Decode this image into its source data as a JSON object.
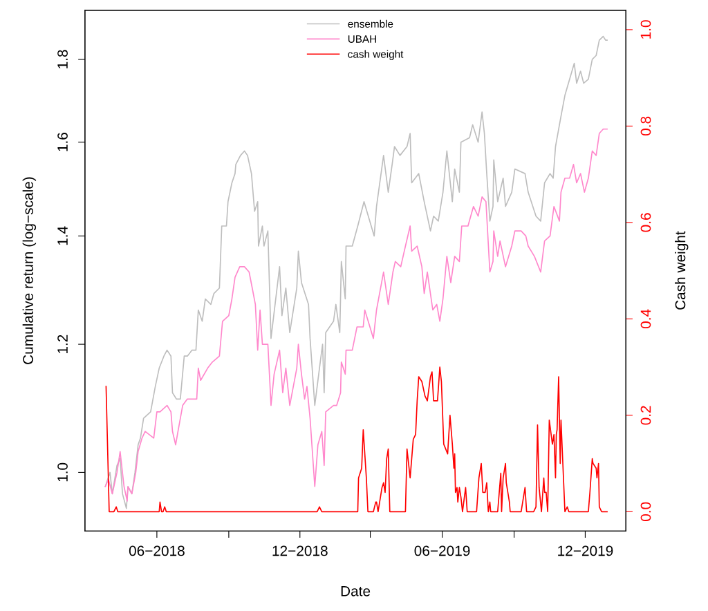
{
  "chart_data": {
    "type": "line",
    "xlabel": "Date",
    "ylabel": "Cumulative return (log−scale)",
    "y2label": "Cash weight",
    "log": "y",
    "grid": false,
    "legend": "top",
    "line_style": "solid",
    "marker": "none",
    "xlim": [
      "2018-03-01",
      "2020-01-22"
    ],
    "xticks": [
      {
        "value": "2018-06-01",
        "label": "06−2018"
      },
      {
        "value": "2018-09-01",
        "label": null
      },
      {
        "value": "2018-12-01",
        "label": "12−2018"
      },
      {
        "value": "2019-03-01",
        "label": null
      },
      {
        "value": "2019-06-01",
        "label": "06−2019"
      },
      {
        "value": "2019-09-01",
        "label": null
      },
      {
        "value": "2019-12-01",
        "label": "12−2019"
      }
    ],
    "ylim": [
      0.92,
      1.93
    ],
    "yticks": [
      {
        "value": 1.0,
        "label": "1.0"
      },
      1.2,
      1.4,
      1.6,
      1.8
    ],
    "y2lim": [
      -0.04,
      1.04
    ],
    "y2ticks": [
      {
        "value": 0,
        "label": "0.0"
      },
      0.2,
      0.4,
      0.6,
      0.8,
      {
        "value": 1,
        "label": "1.0"
      }
    ],
    "series": [
      {
        "name": "ensemble",
        "color": "#bebebe",
        "x": [
          "2018-03-27",
          "2018-04-02",
          "2018-04-05",
          "2018-04-11",
          "2018-04-15",
          "2018-04-18",
          "2018-04-23",
          "2018-04-25",
          "2018-04-30",
          "2018-05-04",
          "2018-05-08",
          "2018-05-11",
          "2018-05-15",
          "2018-05-24",
          "2018-05-30",
          "2018-06-04",
          "2018-06-10",
          "2018-06-14",
          "2018-06-19",
          "2018-06-21",
          "2018-06-26",
          "2018-07-01",
          "2018-07-06",
          "2018-07-10",
          "2018-07-16",
          "2018-07-21",
          "2018-07-24",
          "2018-07-29",
          "2018-08-02",
          "2018-08-09",
          "2018-08-13",
          "2018-08-20",
          "2018-08-23",
          "2018-08-29",
          "2018-08-31",
          "2018-09-05",
          "2018-09-09",
          "2018-09-10",
          "2018-09-16",
          "2018-09-21",
          "2018-09-25",
          "2018-09-30",
          "2018-10-04",
          "2018-10-08",
          "2018-10-09",
          "2018-10-14",
          "2018-10-16",
          "2018-10-21",
          "2018-10-25",
          "2018-11-05",
          "2018-11-08",
          "2018-11-13",
          "2018-11-18",
          "2018-11-27",
          "2018-11-29",
          "2018-12-03",
          "2018-12-12",
          "2018-12-14",
          "2018-12-20",
          "2018-12-27",
          "2018-12-30",
          "2019-01-01",
          "2019-01-03",
          "2019-01-13",
          "2019-01-16",
          "2019-01-21",
          "2019-01-23",
          "2019-01-28",
          "2019-01-29",
          "2019-02-06",
          "2019-02-13",
          "2019-02-21",
          "2019-03-06",
          "2019-03-09",
          "2019-03-18",
          "2019-03-24",
          "2019-03-29",
          "2019-04-01",
          "2019-04-08",
          "2019-04-17",
          "2019-04-21",
          "2019-04-23",
          "2019-05-02",
          "2019-05-09",
          "2019-05-17",
          "2019-05-21",
          "2019-05-27",
          "2019-06-02",
          "2019-06-07",
          "2019-06-14",
          "2019-06-17",
          "2019-06-23",
          "2019-06-25",
          "2019-07-06",
          "2019-07-10",
          "2019-07-17",
          "2019-07-22",
          "2019-07-25",
          "2019-07-28",
          "2019-08-01",
          "2019-08-05",
          "2019-08-06",
          "2019-08-11",
          "2019-08-18",
          "2019-08-21",
          "2019-08-29",
          "2019-09-02",
          "2019-09-15",
          "2019-09-19",
          "2019-09-29",
          "2019-10-05",
          "2019-10-10",
          "2019-10-17",
          "2019-10-21",
          "2019-10-24",
          "2019-10-31",
          "2019-11-05",
          "2019-11-14",
          "2019-11-17",
          "2019-11-20",
          "2019-11-25",
          "2019-11-29",
          "2019-12-05",
          "2019-12-10",
          "2019-12-15",
          "2019-12-19",
          "2019-12-24",
          "2019-12-27",
          "2019-12-29"
        ],
        "values": [
          0.98,
          1.0,
          0.97,
          1.01,
          1.02,
          0.97,
          0.95,
          0.98,
          0.97,
          1.0,
          1.04,
          1.05,
          1.08,
          1.09,
          1.13,
          1.16,
          1.18,
          1.19,
          1.18,
          1.12,
          1.11,
          1.11,
          1.18,
          1.18,
          1.19,
          1.19,
          1.26,
          1.24,
          1.28,
          1.27,
          1.29,
          1.3,
          1.42,
          1.42,
          1.47,
          1.51,
          1.53,
          1.55,
          1.57,
          1.58,
          1.57,
          1.53,
          1.45,
          1.47,
          1.38,
          1.42,
          1.38,
          1.41,
          1.21,
          1.34,
          1.25,
          1.3,
          1.22,
          1.3,
          1.37,
          1.31,
          1.27,
          1.21,
          1.1,
          1.17,
          1.2,
          1.12,
          1.22,
          1.24,
          1.27,
          1.22,
          1.35,
          1.28,
          1.38,
          1.38,
          1.42,
          1.47,
          1.4,
          1.46,
          1.57,
          1.49,
          1.55,
          1.59,
          1.57,
          1.59,
          1.62,
          1.51,
          1.53,
          1.47,
          1.41,
          1.44,
          1.43,
          1.49,
          1.58,
          1.47,
          1.54,
          1.49,
          1.6,
          1.61,
          1.64,
          1.6,
          1.67,
          1.62,
          1.53,
          1.43,
          1.46,
          1.56,
          1.47,
          1.52,
          1.46,
          1.49,
          1.54,
          1.53,
          1.49,
          1.44,
          1.43,
          1.51,
          1.53,
          1.52,
          1.59,
          1.66,
          1.71,
          1.77,
          1.79,
          1.74,
          1.77,
          1.74,
          1.75,
          1.8,
          1.81,
          1.85,
          1.86,
          1.85,
          1.85
        ]
      },
      {
        "name": "UBAH",
        "color": "#ff88cc",
        "x": [
          "2018-03-27",
          "2018-03-31",
          "2018-04-05",
          "2018-04-11",
          "2018-04-15",
          "2018-04-20",
          "2018-04-24",
          "2018-04-25",
          "2018-04-30",
          "2018-05-05",
          "2018-05-08",
          "2018-05-13",
          "2018-05-17",
          "2018-05-28",
          "2018-06-01",
          "2018-06-05",
          "2018-06-14",
          "2018-06-19",
          "2018-06-21",
          "2018-06-25",
          "2018-06-28",
          "2018-07-04",
          "2018-07-10",
          "2018-07-22",
          "2018-07-24",
          "2018-07-27",
          "2018-08-05",
          "2018-08-11",
          "2018-08-20",
          "2018-08-24",
          "2018-09-01",
          "2018-09-05",
          "2018-09-09",
          "2018-09-15",
          "2018-09-21",
          "2018-09-27",
          "2018-10-01",
          "2018-10-05",
          "2018-10-08",
          "2018-10-11",
          "2018-10-14",
          "2018-10-21",
          "2018-10-23",
          "2018-10-25",
          "2018-10-29",
          "2018-11-05",
          "2018-11-09",
          "2018-11-13",
          "2018-11-18",
          "2018-11-27",
          "2018-11-29",
          "2018-12-03",
          "2018-12-07",
          "2018-12-10",
          "2018-12-14",
          "2018-12-20",
          "2018-12-24",
          "2018-12-29",
          "2019-01-01",
          "2019-01-03",
          "2019-01-13",
          "2019-01-17",
          "2019-01-22",
          "2019-01-23",
          "2019-01-28",
          "2019-01-29",
          "2019-02-06",
          "2019-02-12",
          "2019-02-20",
          "2019-02-22",
          "2019-03-05",
          "2019-03-09",
          "2019-03-18",
          "2019-03-24",
          "2019-03-30",
          "2019-04-02",
          "2019-04-09",
          "2019-04-15",
          "2019-04-21",
          "2019-04-23",
          "2019-04-30",
          "2019-05-06",
          "2019-05-09",
          "2019-05-13",
          "2019-05-20",
          "2019-05-25",
          "2019-05-29",
          "2019-06-02",
          "2019-06-07",
          "2019-06-12",
          "2019-06-17",
          "2019-06-23",
          "2019-06-26",
          "2019-07-04",
          "2019-07-11",
          "2019-07-17",
          "2019-07-22",
          "2019-07-27",
          "2019-08-01",
          "2019-08-05",
          "2019-08-06",
          "2019-08-11",
          "2019-08-14",
          "2019-08-21",
          "2019-08-29",
          "2019-09-02",
          "2019-09-10",
          "2019-09-16",
          "2019-09-19",
          "2019-09-27",
          "2019-10-05",
          "2019-10-10",
          "2019-10-17",
          "2019-10-22",
          "2019-10-29",
          "2019-10-31",
          "2019-11-05",
          "2019-11-11",
          "2019-11-16",
          "2019-11-20",
          "2019-11-25",
          "2019-11-30",
          "2019-12-05",
          "2019-12-10",
          "2019-12-15",
          "2019-12-19",
          "2019-12-24",
          "2019-12-29"
        ],
        "values": [
          0.98,
          0.99,
          0.97,
          1.0,
          1.03,
          0.98,
          0.96,
          0.98,
          0.97,
          1.0,
          1.03,
          1.05,
          1.06,
          1.05,
          1.09,
          1.09,
          1.1,
          1.09,
          1.06,
          1.04,
          1.06,
          1.1,
          1.11,
          1.11,
          1.16,
          1.14,
          1.16,
          1.17,
          1.18,
          1.24,
          1.25,
          1.28,
          1.32,
          1.34,
          1.34,
          1.33,
          1.3,
          1.27,
          1.19,
          1.26,
          1.2,
          1.2,
          1.15,
          1.1,
          1.15,
          1.19,
          1.12,
          1.16,
          1.1,
          1.16,
          1.2,
          1.15,
          1.11,
          1.13,
          1.08,
          0.98,
          1.04,
          1.06,
          1.01,
          1.09,
          1.1,
          1.1,
          1.12,
          1.17,
          1.15,
          1.19,
          1.19,
          1.23,
          1.23,
          1.26,
          1.21,
          1.26,
          1.33,
          1.27,
          1.33,
          1.35,
          1.34,
          1.38,
          1.42,
          1.37,
          1.38,
          1.34,
          1.29,
          1.33,
          1.26,
          1.27,
          1.24,
          1.28,
          1.36,
          1.31,
          1.36,
          1.35,
          1.42,
          1.42,
          1.46,
          1.44,
          1.48,
          1.47,
          1.33,
          1.35,
          1.41,
          1.36,
          1.39,
          1.34,
          1.38,
          1.41,
          1.41,
          1.4,
          1.38,
          1.36,
          1.33,
          1.39,
          1.4,
          1.46,
          1.43,
          1.49,
          1.52,
          1.52,
          1.55,
          1.51,
          1.53,
          1.49,
          1.52,
          1.58,
          1.57,
          1.62,
          1.63,
          1.63
        ]
      },
      {
        "name": "cash weight",
        "color": "#ff0000",
        "axis": "y2",
        "x": [
          "2018-03-28",
          "2018-04-01",
          "2018-04-07",
          "2018-04-10",
          "2018-04-12",
          "2018-06-04",
          "2018-06-05",
          "2018-06-07",
          "2018-06-09",
          "2018-06-11",
          "2018-06-13",
          "2018-12-23",
          "2018-12-26",
          "2018-12-29",
          "2019-02-13",
          "2019-02-14",
          "2019-02-18",
          "2019-02-20",
          "2019-02-24",
          "2019-02-26",
          "2019-03-05",
          "2019-03-08",
          "2019-03-09",
          "2019-03-11",
          "2019-03-16",
          "2019-03-18",
          "2019-03-20",
          "2019-03-22",
          "2019-03-24",
          "2019-03-26",
          "2019-04-15",
          "2019-04-17",
          "2019-04-21",
          "2019-04-24",
          "2019-04-25",
          "2019-04-28",
          "2019-04-30",
          "2019-05-02",
          "2019-05-06",
          "2019-05-10",
          "2019-05-13",
          "2019-05-17",
          "2019-05-19",
          "2019-05-21",
          "2019-05-26",
          "2019-05-29",
          "2019-05-31",
          "2019-06-03",
          "2019-06-08",
          "2019-06-11",
          "2019-06-14",
          "2019-06-16",
          "2019-06-17",
          "2019-06-18",
          "2019-06-20",
          "2019-06-21",
          "2019-06-23",
          "2019-06-25",
          "2019-06-27",
          "2019-07-01",
          "2019-07-03",
          "2019-07-15",
          "2019-07-18",
          "2019-07-21",
          "2019-07-23",
          "2019-07-26",
          "2019-07-28",
          "2019-07-30",
          "2019-08-01",
          "2019-08-02",
          "2019-08-11",
          "2019-08-15",
          "2019-08-16",
          "2019-08-18",
          "2019-08-21",
          "2019-08-22",
          "2019-08-26",
          "2019-08-27",
          "2019-09-10",
          "2019-09-15",
          "2019-09-17",
          "2019-09-26",
          "2019-09-29",
          "2019-10-01",
          "2019-10-03",
          "2019-10-06",
          "2019-10-09",
          "2019-10-10",
          "2019-10-12",
          "2019-10-14",
          "2019-10-16",
          "2019-10-20",
          "2019-10-22",
          "2019-10-24",
          "2019-10-25",
          "2019-10-26",
          "2019-10-28",
          "2019-10-30",
          "2019-10-31",
          "2019-11-05",
          "2019-11-08",
          "2019-11-10",
          "2019-12-05",
          "2019-12-07",
          "2019-12-10",
          "2019-12-11",
          "2019-12-15",
          "2019-12-16",
          "2019-12-18",
          "2019-12-19",
          "2019-12-22",
          "2019-12-29"
        ],
        "values": [
          0.26,
          0,
          0,
          0.01,
          0,
          0,
          0.02,
          0,
          0,
          0.01,
          0,
          0,
          0.01,
          0,
          0,
          0.07,
          0.09,
          0.17,
          0.07,
          0,
          0,
          0.02,
          0.02,
          0,
          0.05,
          0.06,
          0.04,
          0.11,
          0.13,
          0,
          0,
          0.13,
          0.07,
          0.13,
          0.15,
          0.16,
          0.23,
          0.28,
          0.27,
          0.24,
          0.23,
          0.28,
          0.29,
          0.23,
          0.23,
          0.3,
          0.27,
          0.14,
          0.12,
          0.2,
          0.14,
          0.09,
          0.12,
          0.04,
          0.05,
          0.02,
          0.05,
          0.03,
          0,
          0.05,
          0,
          0,
          0.07,
          0.1,
          0.04,
          0.04,
          0.06,
          0,
          0.02,
          0,
          0,
          0.08,
          0,
          0.07,
          0.1,
          0.06,
          0.02,
          0,
          0,
          0.05,
          0,
          0,
          0.01,
          0.18,
          0.05,
          0,
          0.07,
          0.04,
          0.04,
          0,
          0.19,
          0.14,
          0.16,
          0.07,
          0.16,
          0.17,
          0.28,
          0.1,
          0.19,
          0,
          0.01,
          0,
          0,
          0.04,
          0.11,
          0.1,
          0.09,
          0.07,
          0.1,
          0.01,
          0,
          0
        ]
      }
    ]
  }
}
